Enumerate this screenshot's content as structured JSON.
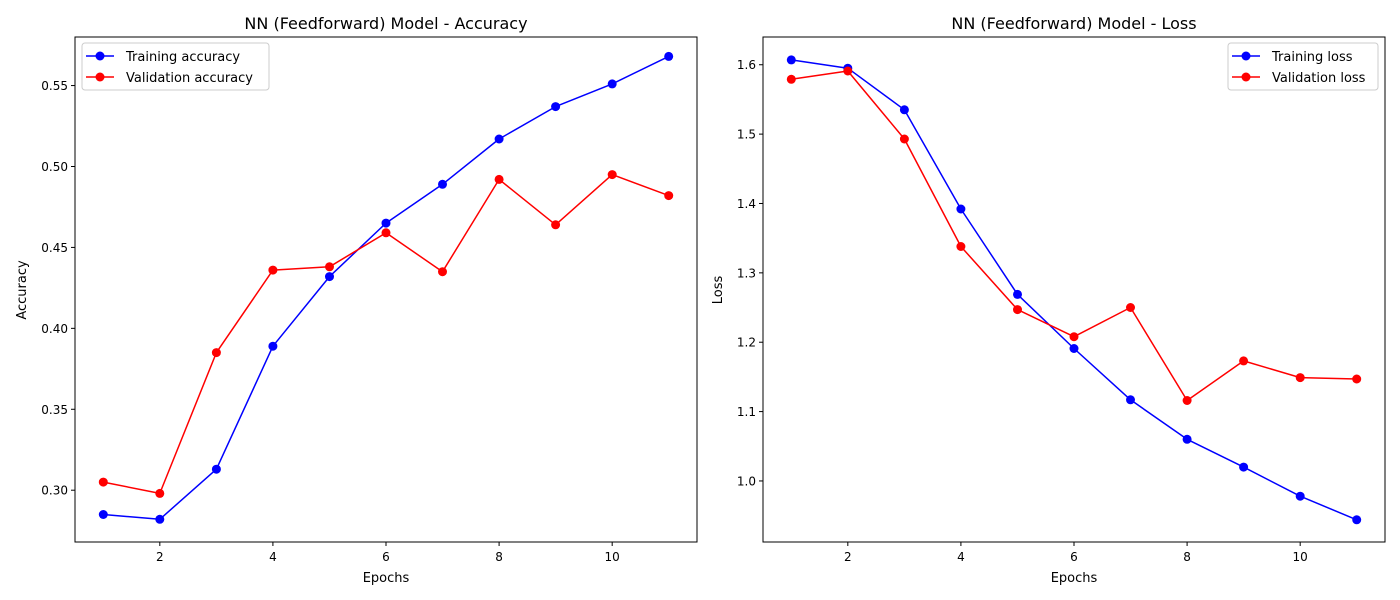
{
  "chart_data": [
    {
      "type": "line",
      "title": "NN (Feedforward) Model - Accuracy",
      "xlabel": "Epochs",
      "ylabel": "Accuracy",
      "x": [
        1,
        2,
        3,
        4,
        5,
        6,
        7,
        8,
        9,
        10,
        11
      ],
      "xlim": [
        0.5,
        11.5
      ],
      "ylim": [
        0.268,
        0.58
      ],
      "xticks": [
        2,
        4,
        6,
        8,
        10
      ],
      "yticks": [
        0.3,
        0.35,
        0.4,
        0.45,
        0.5,
        0.55
      ],
      "ytick_decimals": 2,
      "grid": false,
      "legend_position": "top-left",
      "series": [
        {
          "name": "Training accuracy",
          "color": "#0000ff",
          "marker": "circle",
          "values": [
            0.285,
            0.282,
            0.313,
            0.389,
            0.432,
            0.465,
            0.489,
            0.517,
            0.537,
            0.551,
            0.568
          ]
        },
        {
          "name": "Validation accuracy",
          "color": "#ff0000",
          "marker": "circle",
          "values": [
            0.305,
            0.298,
            0.385,
            0.436,
            0.438,
            0.459,
            0.435,
            0.492,
            0.464,
            0.495,
            0.482
          ]
        }
      ]
    },
    {
      "type": "line",
      "title": "NN (Feedforward) Model - Loss",
      "xlabel": "Epochs",
      "ylabel": "Loss",
      "x": [
        1,
        2,
        3,
        4,
        5,
        6,
        7,
        8,
        9,
        10,
        11
      ],
      "xlim": [
        0.5,
        11.5
      ],
      "ylim": [
        0.912,
        1.64
      ],
      "xticks": [
        2,
        4,
        6,
        8,
        10
      ],
      "yticks": [
        1.0,
        1.1,
        1.2,
        1.3,
        1.4,
        1.5,
        1.6
      ],
      "ytick_decimals": 1,
      "grid": false,
      "legend_position": "top-right",
      "series": [
        {
          "name": "Training loss",
          "color": "#0000ff",
          "marker": "circle",
          "values": [
            1.607,
            1.595,
            1.535,
            1.392,
            1.269,
            1.191,
            1.117,
            1.06,
            1.02,
            0.978,
            0.944
          ]
        },
        {
          "name": "Validation loss",
          "color": "#ff0000",
          "marker": "circle",
          "values": [
            1.579,
            1.591,
            1.493,
            1.338,
            1.247,
            1.208,
            1.25,
            1.116,
            1.173,
            1.149,
            1.147
          ]
        }
      ]
    }
  ]
}
